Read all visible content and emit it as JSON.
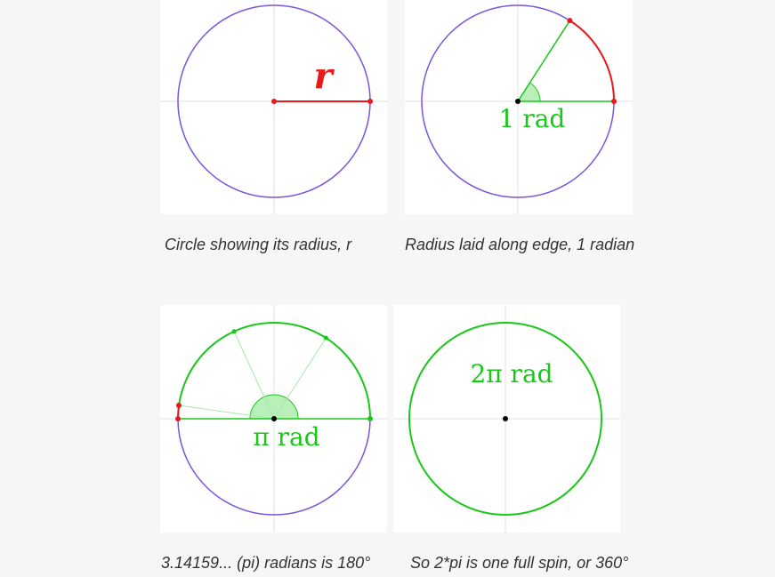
{
  "colors": {
    "background": "#f6f6f6",
    "panel": "#ffffff",
    "axis": "#e0e0e0",
    "circle_purple": "#7b52e0",
    "radius_red": "#e8191c",
    "angle_green": "#19c719",
    "angle_fill": "#b9efb9",
    "center": "#000000"
  },
  "panels": [
    {
      "label": "r",
      "caption": "Circle showing its radius, r"
    },
    {
      "label": "1 rad",
      "caption": "Radius laid along edge, 1 radian"
    },
    {
      "label": "π rad",
      "caption": "3.14159... (pi) radians is 180°"
    },
    {
      "label": "2π rad",
      "caption": "So 2*pi is one full spin, or 360°"
    }
  ]
}
